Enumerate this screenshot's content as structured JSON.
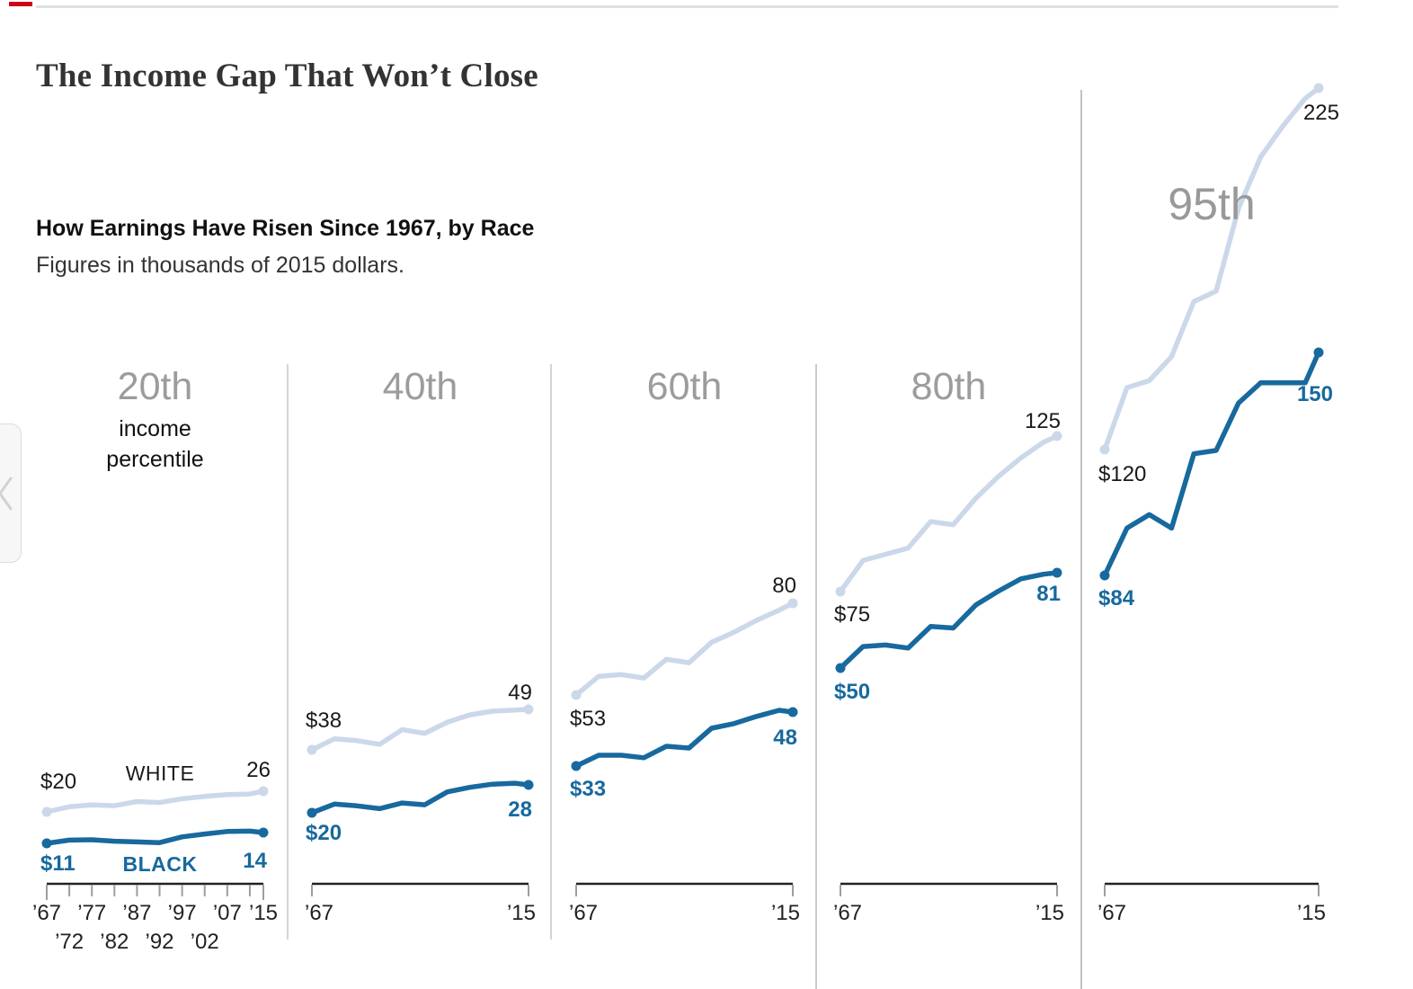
{
  "page": {
    "title": "The Income Gap That Won’t Close",
    "subtitle": "How Earnings Have Risen Since 1967, by Race",
    "note": "Figures in thousands of 2015 dollars."
  },
  "nav": {
    "prev_icon": "chevron-left-icon"
  },
  "colors": {
    "white_series": "#cbd8e9",
    "black_series": "#17699e",
    "header_gray": "#9c9c9c",
    "axis_dark": "#222222",
    "tick_gray": "#9e9e9e",
    "rule_gray": "#e0e0e0",
    "accent_red": "#d0021b"
  },
  "chart_data": {
    "type": "line",
    "title": "The Income Gap That Won’t Close",
    "subtitle": "How Earnings Have Risen Since 1967, by Race",
    "units": "thousands of 2015 dollars",
    "x": [
      1967,
      1972,
      1977,
      1982,
      1987,
      1992,
      1997,
      2002,
      2007,
      2012,
      2015
    ],
    "x_axis": {
      "row1": [
        "’67",
        "’77",
        "’87",
        "’97",
        "’07",
        "’15"
      ],
      "row1_tick_indices": [
        0,
        2,
        4,
        6,
        8,
        10
      ],
      "row2": [
        "’72",
        "’82",
        "’92",
        "’02"
      ],
      "row2_tick_indices": [
        1,
        3,
        5,
        7
      ],
      "range_start_label": "’67",
      "range_end_label": "’15"
    },
    "legend": {
      "white": "WHITE",
      "black": "BLACK"
    },
    "panels": [
      {
        "header": "20th",
        "header_note": "income\npercentile",
        "series": [
          {
            "name": "WHITE",
            "start_label": "$20",
            "end_label": "26",
            "values": [
              20,
              21.5,
              22,
              21.8,
              23,
              22.7,
              23.8,
              24.5,
              25,
              25.2,
              26
            ]
          },
          {
            "name": "BLACK",
            "start_label": "$11",
            "end_label": "14",
            "values": [
              11,
              11.9,
              12,
              11.6,
              11.4,
              11.2,
              12.8,
              13.6,
              14.3,
              14.4,
              14
            ]
          }
        ]
      },
      {
        "header": "40th",
        "series": [
          {
            "name": "WHITE",
            "start_label": "$38",
            "end_label": "49",
            "values": [
              38,
              41,
              40.5,
              39.5,
              43.5,
              42.5,
              45.5,
              47.5,
              48.5,
              48.8,
              49
            ]
          },
          {
            "name": "BLACK",
            "start_label": "$20",
            "end_label": "28",
            "values": [
              20,
              22.5,
              22,
              21.2,
              22.8,
              22.3,
              26,
              27.3,
              28.2,
              28.5,
              28
            ]
          }
        ]
      },
      {
        "header": "60th",
        "series": [
          {
            "name": "WHITE",
            "start_label": "$53",
            "end_label": "80",
            "values": [
              53,
              58.5,
              59,
              58,
              63.5,
              62.5,
              68.5,
              71.5,
              75,
              78,
              80
            ]
          },
          {
            "name": "BLACK",
            "start_label": "$33",
            "end_label": "48",
            "values": [
              33,
              36,
              36,
              35.3,
              38.5,
              38,
              43.5,
              44.8,
              46.8,
              48.5,
              48
            ]
          }
        ]
      },
      {
        "header": "80th",
        "series": [
          {
            "name": "WHITE",
            "start_label": "$75",
            "end_label": "125",
            "values": [
              75,
              85,
              87,
              89,
              97.5,
              96.5,
              105,
              112,
              118,
              123,
              125
            ]
          },
          {
            "name": "BLACK",
            "start_label": "$50",
            "end_label": "81",
            "values": [
              50,
              57,
              57.5,
              56.5,
              63.5,
              63,
              70.5,
              75,
              79,
              80.5,
              81
            ]
          }
        ]
      },
      {
        "header": "95th",
        "series": [
          {
            "name": "WHITE",
            "start_label": "$120",
            "end_label": "225",
            "values": [
              120,
              138,
              140,
              147,
              163,
              166,
              190,
              205,
              214,
              222,
              225
            ]
          },
          {
            "name": "BLACK",
            "start_label": "$84",
            "end_label": "150",
            "values": [
              84,
              98,
              102,
              98,
              120,
              121,
              135,
              141,
              141,
              141,
              150
            ]
          }
        ]
      }
    ]
  }
}
